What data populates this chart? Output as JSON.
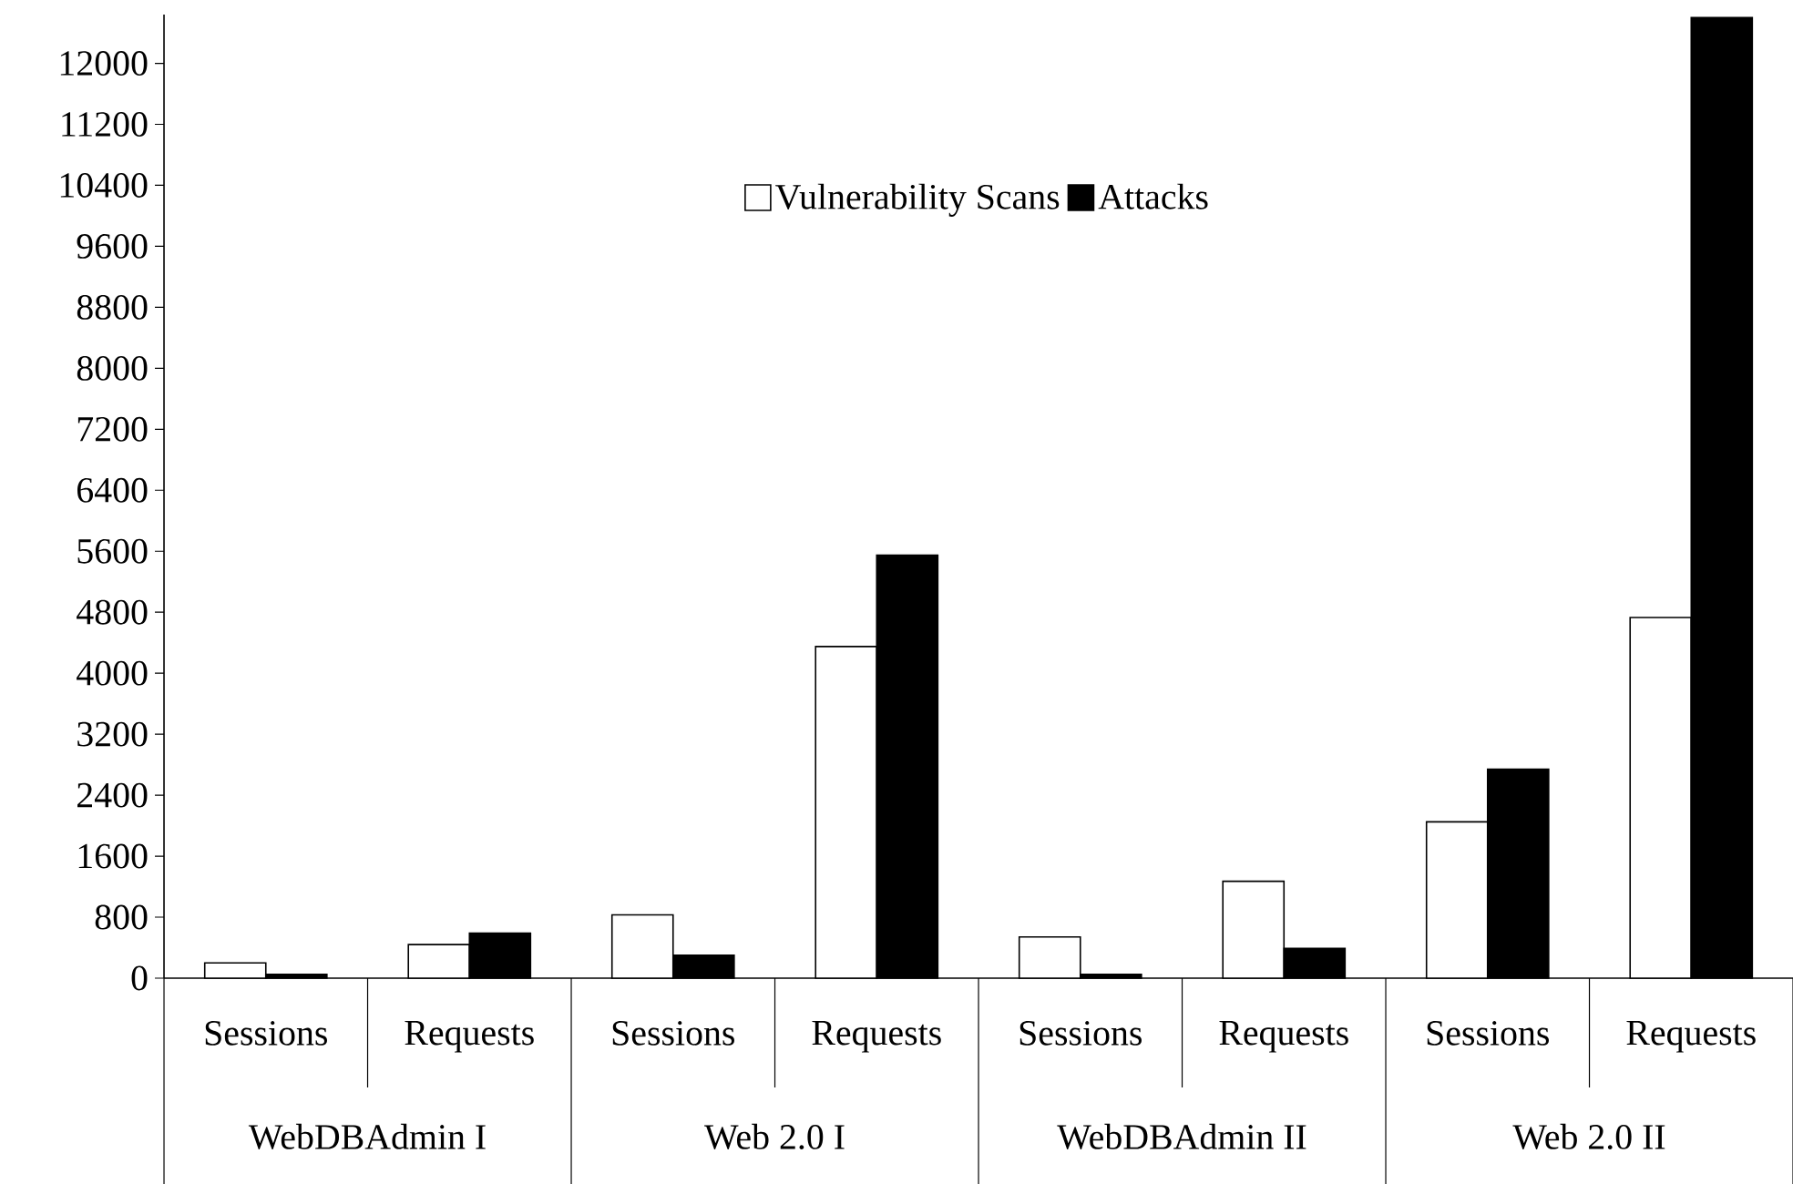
{
  "chart_data": {
    "type": "bar",
    "categories": [
      "Sessions",
      "Requests",
      "Sessions",
      "Requests",
      "Sessions",
      "Requests",
      "Sessions",
      "Requests"
    ],
    "series": [
      {
        "name": "Vulnerability Scans",
        "color": "#ffffff",
        "values": [
          200,
          440,
          830,
          4350,
          540,
          1270,
          2050,
          4730
        ]
      },
      {
        "name": "Attacks",
        "color": "#000000",
        "values": [
          50,
          590,
          300,
          5550,
          50,
          390,
          2740,
          12600
        ]
      }
    ],
    "annotations": [
      "WebDBAdmin I",
      "Web 2.0 I",
      "WebDBAdmin II",
      "Web 2.0 II"
    ],
    "ylim": [
      0,
      12640
    ],
    "yticks": [
      0,
      800,
      1600,
      2400,
      3200,
      4000,
      4800,
      5600,
      6400,
      7200,
      8000,
      8800,
      9600,
      10400,
      11200,
      12000
    ],
    "legend": "top",
    "grid": false
  }
}
